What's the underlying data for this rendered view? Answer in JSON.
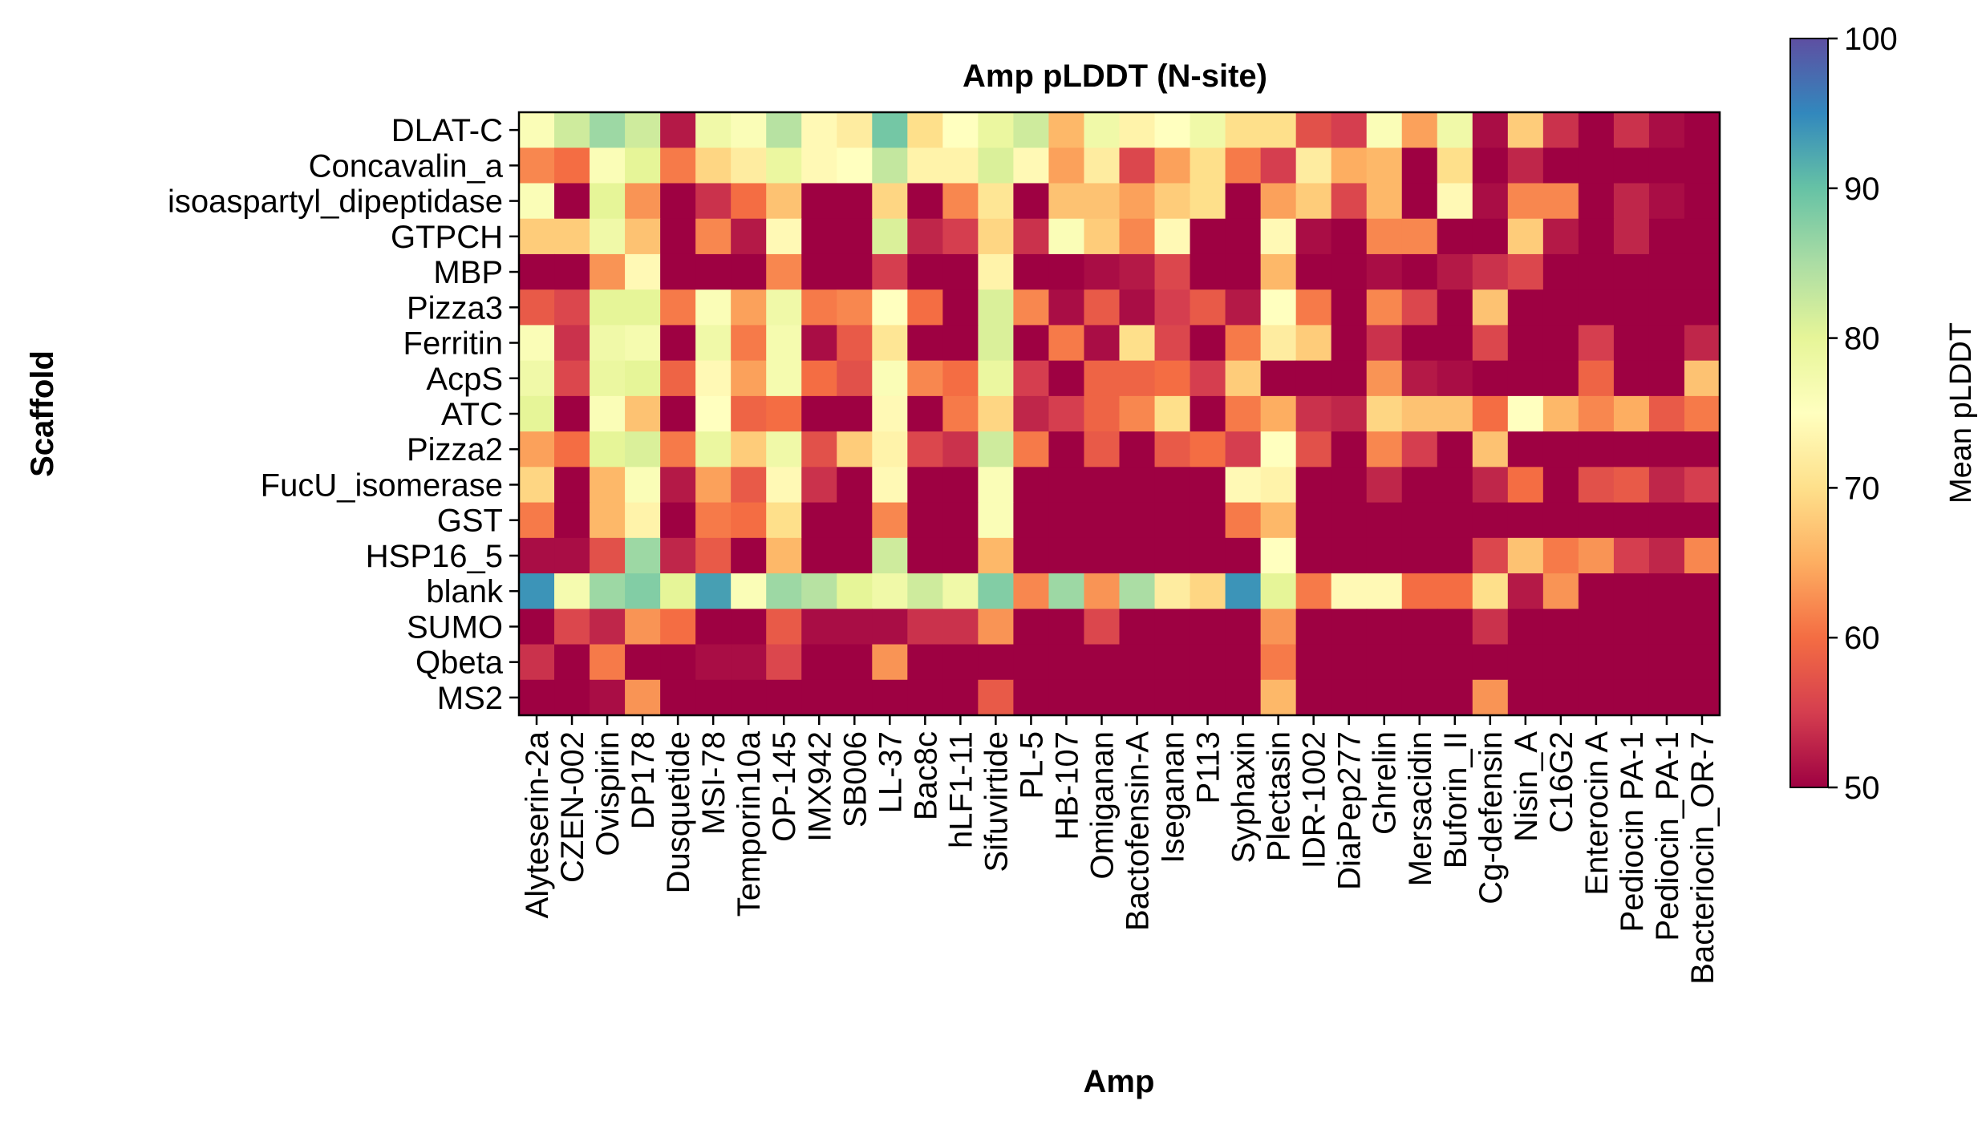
{
  "chart_data": {
    "type": "heatmap",
    "title": "Amp pLDDT (N-site)",
    "xlabel": "Amp",
    "ylabel": "Scaffold",
    "colorbar": {
      "label": "Mean pLDDT",
      "range": [
        50,
        100
      ],
      "ticks": [
        50,
        60,
        70,
        80,
        90,
        100
      ],
      "colormap": "Spectral"
    },
    "rows": [
      "DLAT-C",
      "Concavalin_a",
      "isoaspartyl_dipeptidase",
      "GTPCH",
      "MBP",
      "Pizza3",
      "Ferritin",
      "AcpS",
      "ATC",
      "Pizza2",
      "FucU_isomerase",
      "GST",
      "HSP16_5",
      "blank",
      "SUMO",
      "Qbeta",
      "MS2"
    ],
    "columns": [
      "Alyteserin-2a",
      "CZEN-002",
      "Ovispirin",
      "DP178",
      "Dusquetide",
      "MSI-78",
      "Temporin10a",
      "OP-145",
      "IMX942",
      "SB006",
      "LL-37",
      "Bac8c",
      "hLF1-11",
      "Sifuvirtide",
      "PL-5",
      "HB-107",
      "Omiganan",
      "Bactofensin-A",
      "Iseganan",
      "P113",
      "Syphaxin",
      "Plectasin",
      "IDR-1002",
      "DiaPep277",
      "Ghrelin",
      "Mersacidin",
      "Buforin_II",
      "Cg-defensin",
      "Nisin_A",
      "C16G2",
      "Enterocin A",
      "Pediocin PA-1",
      "Pediocin_PA-1",
      "Bacteriocin_OR-7"
    ],
    "values": [
      [
        76,
        82,
        86,
        82,
        52,
        78,
        76,
        84,
        74,
        72,
        89,
        70,
        75,
        79,
        82,
        66,
        78,
        73,
        75,
        78,
        70,
        70,
        57,
        55,
        76,
        64,
        78,
        51,
        68,
        54,
        50,
        54,
        51,
        50
      ],
      [
        62,
        60,
        76,
        80,
        61,
        69,
        72,
        79,
        74,
        75,
        83,
        73,
        73,
        81,
        74,
        64,
        72,
        56,
        64,
        70,
        61,
        55,
        72,
        65,
        66,
        50,
        70,
        50,
        53,
        50,
        50,
        50,
        50,
        50
      ],
      [
        76,
        50,
        80,
        63,
        50,
        54,
        60,
        67,
        50,
        50,
        69,
        50,
        62,
        71,
        50,
        67,
        67,
        64,
        68,
        70,
        50,
        64,
        68,
        56,
        66,
        50,
        74,
        51,
        62,
        62,
        50,
        53,
        51,
        50
      ],
      [
        68,
        68,
        78,
        67,
        50,
        62,
        52,
        74,
        50,
        50,
        81,
        53,
        55,
        69,
        54,
        76,
        68,
        62,
        74,
        50,
        50,
        74,
        51,
        50,
        62,
        62,
        50,
        50,
        68,
        52,
        50,
        53,
        50,
        50
      ],
      [
        50,
        50,
        63,
        74,
        50,
        50,
        50,
        62,
        50,
        50,
        55,
        50,
        50,
        73,
        50,
        50,
        51,
        52,
        56,
        50,
        50,
        66,
        50,
        50,
        51,
        50,
        52,
        54,
        56,
        50,
        50,
        50,
        50,
        50
      ],
      [
        58,
        56,
        80,
        80,
        61,
        76,
        64,
        78,
        61,
        62,
        75,
        60,
        50,
        81,
        62,
        51,
        58,
        51,
        55,
        58,
        52,
        75,
        61,
        50,
        62,
        56,
        50,
        67,
        50,
        50,
        50,
        50,
        50,
        50
      ],
      [
        76,
        54,
        78,
        77,
        50,
        78,
        61,
        77,
        51,
        58,
        71,
        50,
        50,
        81,
        50,
        61,
        51,
        70,
        56,
        50,
        61,
        72,
        68,
        50,
        54,
        50,
        50,
        56,
        50,
        50,
        55,
        50,
        50,
        53
      ],
      [
        78,
        56,
        79,
        80,
        59,
        74,
        64,
        77,
        60,
        57,
        76,
        62,
        60,
        79,
        55,
        50,
        59,
        59,
        60,
        55,
        68,
        50,
        50,
        50,
        63,
        52,
        51,
        50,
        50,
        50,
        59,
        50,
        50,
        67
      ],
      [
        80,
        50,
        76,
        67,
        50,
        75,
        59,
        60,
        50,
        50,
        74,
        50,
        61,
        69,
        53,
        55,
        59,
        62,
        70,
        50,
        61,
        65,
        54,
        53,
        69,
        67,
        67,
        60,
        75,
        66,
        62,
        65,
        58,
        61
      ],
      [
        64,
        60,
        80,
        81,
        61,
        79,
        68,
        78,
        57,
        68,
        73,
        56,
        54,
        82,
        61,
        50,
        58,
        50,
        58,
        60,
        55,
        75,
        57,
        50,
        62,
        55,
        50,
        67,
        50,
        50,
        50,
        50,
        50,
        50
      ],
      [
        69,
        50,
        66,
        76,
        52,
        64,
        58,
        74,
        54,
        50,
        74,
        50,
        50,
        76,
        50,
        50,
        50,
        50,
        50,
        50,
        74,
        73,
        50,
        50,
        53,
        50,
        50,
        53,
        60,
        50,
        57,
        58,
        53,
        55
      ],
      [
        61,
        50,
        66,
        73,
        50,
        61,
        60,
        70,
        50,
        50,
        62,
        50,
        50,
        76,
        50,
        50,
        50,
        50,
        50,
        50,
        61,
        66,
        50,
        50,
        50,
        50,
        50,
        50,
        50,
        50,
        50,
        50,
        50,
        50
      ],
      [
        51,
        51,
        57,
        86,
        53,
        58,
        50,
        66,
        50,
        50,
        82,
        50,
        50,
        66,
        50,
        50,
        50,
        50,
        50,
        50,
        50,
        75,
        50,
        50,
        50,
        50,
        50,
        56,
        67,
        61,
        63,
        55,
        53,
        62
      ],
      [
        94,
        77,
        86,
        88,
        80,
        93,
        76,
        86,
        84,
        80,
        78,
        82,
        78,
        88,
        62,
        86,
        63,
        85,
        72,
        69,
        94,
        80,
        61,
        74,
        74,
        60,
        60,
        70,
        52,
        63,
        50,
        50,
        50,
        50
      ],
      [
        50,
        56,
        53,
        63,
        60,
        50,
        50,
        58,
        51,
        51,
        51,
        54,
        54,
        63,
        50,
        50,
        56,
        50,
        50,
        50,
        50,
        63,
        50,
        50,
        50,
        50,
        50,
        54,
        50,
        50,
        50,
        50,
        50,
        50
      ],
      [
        54,
        50,
        61,
        50,
        50,
        51,
        51,
        56,
        50,
        50,
        63,
        50,
        50,
        50,
        50,
        50,
        50,
        50,
        50,
        50,
        50,
        61,
        50,
        50,
        50,
        50,
        50,
        50,
        50,
        50,
        50,
        50,
        50,
        50
      ],
      [
        50,
        50,
        51,
        63,
        50,
        50,
        50,
        50,
        50,
        50,
        50,
        50,
        50,
        58,
        50,
        50,
        50,
        50,
        50,
        50,
        50,
        66,
        50,
        50,
        50,
        50,
        50,
        63,
        50,
        50,
        50,
        50,
        50,
        50
      ]
    ]
  }
}
